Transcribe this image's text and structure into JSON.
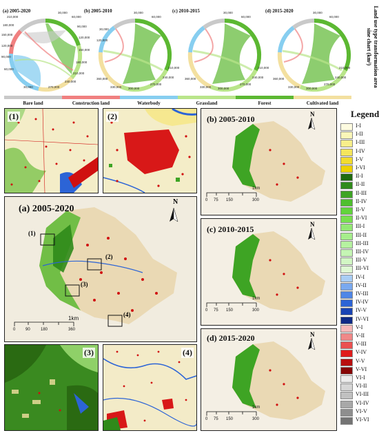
{
  "chord_panels": [
    {
      "title": "(a) 2005-2020",
      "ticks": [
        "30,000",
        "60,000",
        "90,000",
        "120,000",
        "150,000",
        "180,000",
        "210,000",
        "240,000",
        "270,000",
        "30,000",
        "60,000",
        "90,000",
        "120,000",
        "150,000",
        "180,000",
        "210,000"
      ]
    },
    {
      "title": "(b) 2005-2010",
      "ticks": [
        "30,000",
        "60,000",
        "90,000",
        "120,000",
        "150,000",
        "180,000",
        "210,000",
        "240,000",
        "270,000",
        "300,000",
        "330,000",
        "360,000",
        "30,000",
        "60,000"
      ]
    },
    {
      "title": "(c) 2010-2015",
      "ticks": [
        "30,000",
        "60,000",
        "90,000",
        "120,000",
        "150,000",
        "180,000",
        "210,000",
        "240,000",
        "270,000",
        "300,000",
        "330,000",
        "360,000",
        "30,000",
        "60,000"
      ]
    },
    {
      "title": "(d) 2015-2020",
      "ticks": [
        "30,000",
        "60,000",
        "90,000",
        "120,000",
        "150,000",
        "180,000",
        "210,000",
        "240,000",
        "270,000",
        "300,000",
        "330,000",
        "360,000",
        "30,000",
        "60,000"
      ]
    }
  ],
  "vertical_title": "Land use type transformation area sine chart (km²)",
  "categories": [
    {
      "name": "Bare land",
      "color": "#c9c9c9"
    },
    {
      "name": "Construction land",
      "color": "#f08080"
    },
    {
      "name": "Waterbody",
      "color": "#87cef0"
    },
    {
      "name": "Grassland",
      "color": "#b9e58a"
    },
    {
      "name": "Forest",
      "color": "#5cb832"
    },
    {
      "name": "Cultivated land",
      "color": "#f3e0a0"
    }
  ],
  "insets": [
    {
      "label": "(1)"
    },
    {
      "label": "(2)"
    },
    {
      "label": "(3)"
    },
    {
      "label": "(4)"
    }
  ],
  "main_map": {
    "title": "(a) 2005-2020",
    "north": "N",
    "scale_labels": [
      "0",
      "90",
      "180",
      "360"
    ],
    "scale_unit": "1km",
    "box_labels": [
      "(1)",
      "(2)",
      "(3)",
      "(4)"
    ]
  },
  "side_maps": [
    {
      "title": "(b) 2005-2010",
      "north": "N",
      "scale_labels": [
        "0",
        "75",
        "150",
        "300"
      ],
      "scale_unit": "1km"
    },
    {
      "title": "(c) 2010-2015",
      "north": "N",
      "scale_labels": [
        "0",
        "75",
        "150",
        "300"
      ],
      "scale_unit": "1km"
    },
    {
      "title": "(d) 2015-2020",
      "north": "N",
      "scale_labels": [
        "0",
        "75",
        "150",
        "300"
      ],
      "scale_unit": "1km"
    }
  ],
  "legend": {
    "title": "Legend",
    "items": [
      {
        "label": "I-I",
        "color": "#fdfbe0"
      },
      {
        "label": "I-II",
        "color": "#fbf6b8"
      },
      {
        "label": "I-III",
        "color": "#f8ef8a"
      },
      {
        "label": "I-IV",
        "color": "#f5e65c"
      },
      {
        "label": "I-V",
        "color": "#f2dc2e"
      },
      {
        "label": "I-VI",
        "color": "#eed200"
      },
      {
        "label": "II-I",
        "color": "#1f6b10"
      },
      {
        "label": "II-II",
        "color": "#2f8a1a"
      },
      {
        "label": "II-III",
        "color": "#3ea424"
      },
      {
        "label": "II-IV",
        "color": "#4fbf2e"
      },
      {
        "label": "II-V",
        "color": "#62d43c"
      },
      {
        "label": "II-VI",
        "color": "#78e04e"
      },
      {
        "label": "III-I",
        "color": "#93e874"
      },
      {
        "label": "III-II",
        "color": "#a6ee8c"
      },
      {
        "label": "III-III",
        "color": "#b6f2a0"
      },
      {
        "label": "III-IV",
        "color": "#c5f5b4"
      },
      {
        "label": "III-V",
        "color": "#d2f7c4"
      },
      {
        "label": "III-VI",
        "color": "#def9d3"
      },
      {
        "label": "IV-I",
        "color": "#a9cdf5"
      },
      {
        "label": "IV-II",
        "color": "#7aa9ef"
      },
      {
        "label": "IV-III",
        "color": "#4f86e6"
      },
      {
        "label": "IV-IV",
        "color": "#2c64d6"
      },
      {
        "label": "IV-V",
        "color": "#1944b4"
      },
      {
        "label": "IV-VI",
        "color": "#0e2a86"
      },
      {
        "label": "V-I",
        "color": "#f6b8b8"
      },
      {
        "label": "V-II",
        "color": "#f08888"
      },
      {
        "label": "V-III",
        "color": "#ea5050"
      },
      {
        "label": "V-IV",
        "color": "#e01c1c"
      },
      {
        "label": "V-V",
        "color": "#b80e0e"
      },
      {
        "label": "V-VI",
        "color": "#860505"
      },
      {
        "label": "VI-I",
        "color": "#ececec"
      },
      {
        "label": "VI-II",
        "color": "#d6d6d6"
      },
      {
        "label": "VI-III",
        "color": "#c0c0c0"
      },
      {
        "label": "VI-IV",
        "color": "#a8a8a8"
      },
      {
        "label": "VI-V",
        "color": "#8e8e8e"
      },
      {
        "label": "VI-VI",
        "color": "#747474"
      }
    ]
  }
}
